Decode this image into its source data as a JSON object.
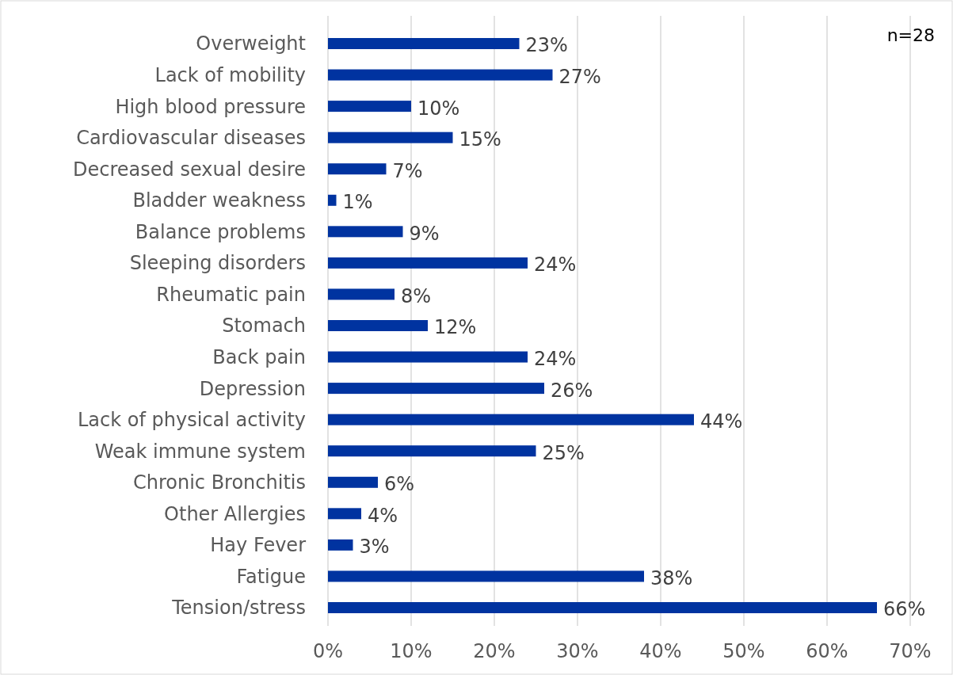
{
  "chart_data": {
    "type": "bar",
    "orientation": "horizontal",
    "categories": [
      "Overweight",
      "Lack of mobility",
      "High blood pressure",
      "Cardiovascular diseases",
      "Decreased sexual desire",
      "Bladder weakness",
      "Balance problems",
      "Sleeping disorders",
      "Rheumatic pain",
      "Stomach",
      "Back pain",
      "Depression",
      "Lack of physical activity",
      "Weak immune system",
      "Chronic Bronchitis",
      "Other Allergies",
      "Hay Fever",
      "Fatigue",
      "Tension/stress"
    ],
    "values": [
      23,
      27,
      10,
      15,
      7,
      1,
      9,
      24,
      8,
      12,
      24,
      26,
      44,
      25,
      6,
      4,
      3,
      38,
      66
    ],
    "value_labels": [
      "23%",
      "27%",
      "10%",
      "15%",
      "7%",
      "1%",
      "9%",
      "24%",
      "8%",
      "12%",
      "24%",
      "26%",
      "44%",
      "25%",
      "6%",
      "4%",
      "3%",
      "38%",
      "66%"
    ],
    "color": "#0033a0",
    "xlim": [
      0,
      70
    ],
    "xticks": [
      {
        "value": 0,
        "label": "0%"
      },
      {
        "value": 10,
        "label": "10%"
      },
      {
        "value": 20,
        "label": "20%"
      },
      {
        "value": 30,
        "label": "30%"
      },
      {
        "value": 40,
        "label": "40%"
      },
      {
        "value": 50,
        "label": "50%"
      },
      {
        "value": 60,
        "label": "60%"
      },
      {
        "value": 70,
        "label": "70%"
      }
    ],
    "grid": "x",
    "annotations": [
      "n=28"
    ]
  }
}
